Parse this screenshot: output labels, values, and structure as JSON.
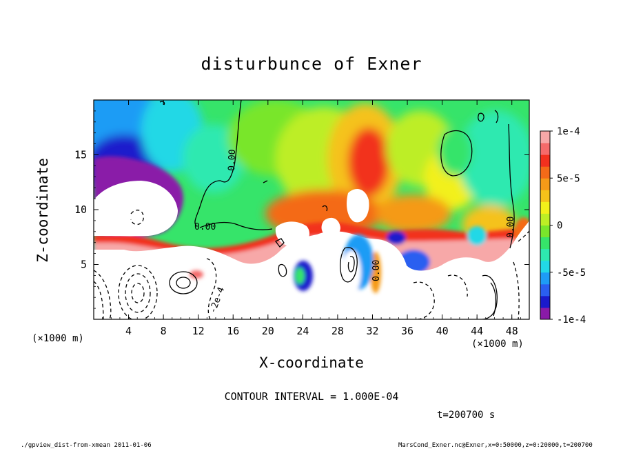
{
  "chart_data": {
    "type": "heatmap",
    "title": "disturbunce of Exner",
    "xlabel": "X-coordinate",
    "ylabel": "Z-coordinate",
    "x_unit": "(×1000 m)",
    "xlim": [
      0,
      50
    ],
    "ylim": [
      0,
      20
    ],
    "x_ticks": [
      4,
      8,
      12,
      16,
      20,
      24,
      28,
      32,
      36,
      40,
      44,
      48
    ],
    "y_ticks": [
      5,
      10,
      15
    ],
    "colorbar": {
      "range": [
        -0.0001,
        0.0001
      ],
      "tick_labels": [
        "1e-4",
        "5e-5",
        "0",
        "-5e-5",
        "-1e-4"
      ],
      "tick_values": [
        0.0001,
        5e-05,
        0,
        -5e-05,
        -0.0001
      ],
      "colors": [
        "#8a1aa8",
        "#1a1acc",
        "#2a5ef0",
        "#1e9cf5",
        "#22d8e6",
        "#2ee9b0",
        "#36e46a",
        "#79e62b",
        "#bdee25",
        "#f2f01a",
        "#f5c21a",
        "#f59a18",
        "#f46a18",
        "#f2301e",
        "#f56a6a",
        "#f7a8a8"
      ]
    },
    "contour_labels": [
      "0.00",
      "0.00",
      "0.00",
      "0.00",
      "-2e-4"
    ],
    "contour_interval_text": "CONTOUR INTERVAL = 1.000E-04",
    "time_text": "t=200700 s"
  },
  "footer": {
    "left": "./gpview_dist-from-xmean  2011-01-06",
    "right": "MarsCond_Exner.nc@Exner,x=0:50000,z=0:20000,t=200700"
  }
}
